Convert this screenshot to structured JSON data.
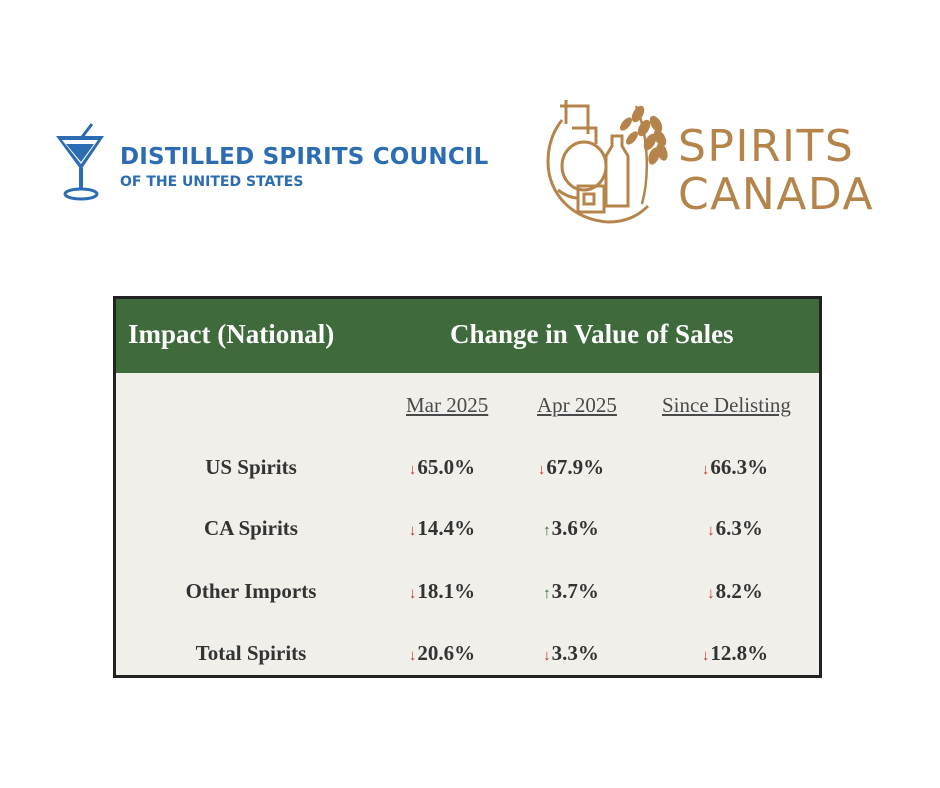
{
  "logos": {
    "discus": {
      "name": "DISTILLED SPIRITS COUNCIL",
      "subtitle": "OF THE UNITED STATES",
      "color": "#2b6cb3",
      "icon": "martini-glass-icon"
    },
    "spirits_canada": {
      "line1": "SPIRITS",
      "line2": "CANADA",
      "color": "#b5844a",
      "icon": "still-wheat-emblem-icon"
    }
  },
  "table": {
    "header_left": "Impact (National)",
    "header_right": "Change in Value of Sales",
    "header_color": "#3f6a3c",
    "columns": [
      "Mar 2025",
      "Apr 2025",
      "Since Delisting"
    ],
    "rows": [
      {
        "label": "US Spirits",
        "cells": [
          {
            "dir": "down",
            "arrow": "↓",
            "value": "65.0%"
          },
          {
            "dir": "down",
            "arrow": "↓",
            "value": "67.9%"
          },
          {
            "dir": "down",
            "arrow": "↓",
            "value": "66.3%"
          }
        ]
      },
      {
        "label": "CA Spirits",
        "cells": [
          {
            "dir": "down",
            "arrow": "↓",
            "value": "14.4%"
          },
          {
            "dir": "up",
            "arrow": "↑",
            "value": "3.6%"
          },
          {
            "dir": "down",
            "arrow": "↓",
            "value": "6.3%"
          }
        ]
      },
      {
        "label": "Other Imports",
        "cells": [
          {
            "dir": "down",
            "arrow": "↓",
            "value": "18.1%"
          },
          {
            "dir": "up",
            "arrow": "↑",
            "value": "3.7%"
          },
          {
            "dir": "down",
            "arrow": "↓",
            "value": "8.2%"
          }
        ]
      },
      {
        "label": "Total Spirits",
        "cells": [
          {
            "dir": "down",
            "arrow": "↓",
            "value": "20.6%"
          },
          {
            "dir": "down",
            "arrow": "↓",
            "value": "3.3%"
          },
          {
            "dir": "down",
            "arrow": "↓",
            "value": "12.8%"
          }
        ]
      }
    ]
  }
}
